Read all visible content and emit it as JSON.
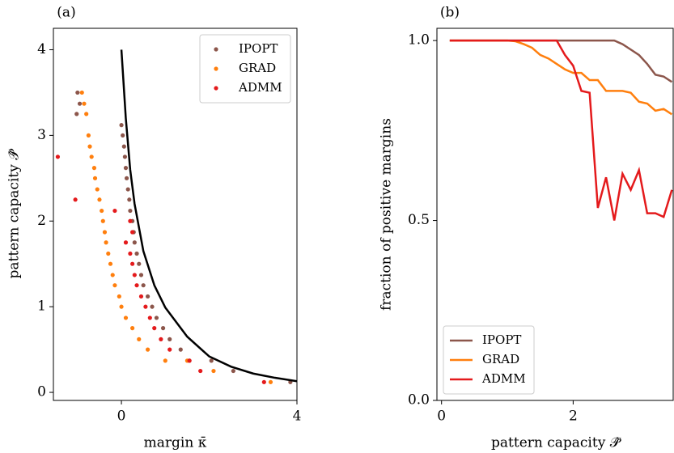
{
  "chart_data": [
    {
      "type": "scatter",
      "panel_label": "(a)",
      "xlabel": "margin κ̄",
      "ylabel": "pattern capacity 𝒫̂",
      "xlim": [
        -1.55,
        4
      ],
      "ylim": [
        -0.094,
        4.25
      ],
      "xticks": [
        0,
        4
      ],
      "yticks": [
        0,
        1,
        2,
        3,
        4
      ],
      "legend": "upper right",
      "series": [
        {
          "name": "IPOPT",
          "color": "#8c564b",
          "x": [
            -1.0,
            -0.95,
            -1.02,
            0,
            0.03,
            0.06,
            0.08,
            0.1,
            0.12,
            0.15,
            0.18,
            0.2,
            0.25,
            0.28,
            0.3,
            0.35,
            0.4,
            0.45,
            0.5,
            0.6,
            0.7,
            0.8,
            0.95,
            1.1,
            1.35,
            1.55,
            2.05,
            2.55,
            3.85
          ],
          "values": [
            3.5,
            3.37,
            3.25,
            3.12,
            3.0,
            2.87,
            2.75,
            2.62,
            2.5,
            2.37,
            2.25,
            2.12,
            2.0,
            1.87,
            1.75,
            1.62,
            1.5,
            1.37,
            1.25,
            1.12,
            1.0,
            0.87,
            0.75,
            0.62,
            0.5,
            0.37,
            0.37,
            0.25,
            0.12
          ]
        },
        {
          "name": "GRAD",
          "color": "#ff7f0e",
          "x": [
            -0.9,
            -0.85,
            -0.8,
            -0.75,
            -0.72,
            -0.68,
            -0.62,
            -0.6,
            -0.55,
            -0.5,
            -0.45,
            -0.42,
            -0.38,
            -0.35,
            -0.3,
            -0.25,
            -0.2,
            -0.15,
            -0.05,
            0,
            0.1,
            0.25,
            0.4,
            0.6,
            1.0,
            1.5,
            2.1,
            3.4
          ],
          "values": [
            3.5,
            3.37,
            3.25,
            3.0,
            2.87,
            2.75,
            2.62,
            2.5,
            2.37,
            2.25,
            2.12,
            2.0,
            1.87,
            1.75,
            1.62,
            1.5,
            1.37,
            1.25,
            1.12,
            1.0,
            0.87,
            0.75,
            0.62,
            0.5,
            0.37,
            0.37,
            0.25,
            0.12
          ]
        },
        {
          "name": "ADMM",
          "color": "#e41a1c",
          "x": [
            -1.45,
            -1.05,
            -0.15,
            0.2,
            0.25,
            0.1,
            0.2,
            0.25,
            0.3,
            0.35,
            0.45,
            0.55,
            0.65,
            0.75,
            0.9,
            1.1,
            1.55,
            1.8,
            3.25
          ],
          "values": [
            2.75,
            2.25,
            2.12,
            2.0,
            1.87,
            1.75,
            1.62,
            1.5,
            1.37,
            1.25,
            1.12,
            1.0,
            0.87,
            0.75,
            0.62,
            0.5,
            0.37,
            0.25,
            0.12
          ]
        },
        {
          "kind": "line",
          "color": "#000000",
          "x": [
            0,
            0.1,
            0.2,
            0.3,
            0.5,
            0.75,
            1,
            1.5,
            2,
            2.5,
            3,
            3.5,
            4
          ],
          "values": [
            4,
            3.2,
            2.6,
            2.2,
            1.65,
            1.25,
            0.99,
            0.65,
            0.42,
            0.3,
            0.22,
            0.17,
            0.13
          ]
        }
      ]
    },
    {
      "type": "line",
      "panel_label": "(b)",
      "xlabel": "pattern capacity 𝒫̂",
      "ylabel": "fraction of positive margins",
      "xlim": [
        -0.07,
        3.52
      ],
      "ylim": [
        0,
        1.034
      ],
      "xticks": [
        0,
        2
      ],
      "yticks": [
        {
          "value": 0,
          "label": "0.0"
        },
        0.5,
        {
          "value": 1,
          "label": "1.0"
        }
      ],
      "legend": "lower left",
      "x": [
        0.125,
        0.25,
        0.375,
        0.5,
        0.625,
        0.75,
        0.875,
        1.0,
        1.125,
        1.25,
        1.375,
        1.5,
        1.625,
        1.75,
        1.875,
        2.0,
        2.125,
        2.25,
        2.375,
        2.5,
        2.625,
        2.75,
        2.875,
        3.0,
        3.125,
        3.25,
        3.375,
        3.5
      ],
      "series": [
        {
          "name": "IPOPT",
          "color": "#8c564b",
          "values": [
            1,
            1,
            1,
            1,
            1,
            1,
            1,
            1,
            1,
            1,
            1,
            1,
            1,
            1,
            1,
            1,
            1,
            1,
            1,
            1,
            1,
            0.99,
            0.975,
            0.96,
            0.935,
            0.905,
            0.9,
            0.885
          ]
        },
        {
          "name": "GRAD",
          "color": "#ff7f0e",
          "values": [
            1,
            1,
            1,
            1,
            1,
            1,
            1,
            1,
            0.998,
            0.99,
            0.98,
            0.96,
            0.95,
            0.935,
            0.92,
            0.91,
            0.91,
            0.89,
            0.89,
            0.86,
            0.86,
            0.86,
            0.855,
            0.83,
            0.825,
            0.805,
            0.81,
            0.795
          ]
        },
        {
          "name": "ADMM",
          "color": "#e41a1c",
          "values": [
            1,
            1,
            1,
            1,
            1,
            1,
            1,
            1,
            1,
            1,
            1,
            1,
            1,
            1,
            0.96,
            0.93,
            0.86,
            0.855,
            0.535,
            0.62,
            0.5,
            0.63,
            0.585,
            0.64,
            0.52,
            0.52,
            0.51,
            0.585
          ]
        }
      ]
    }
  ]
}
